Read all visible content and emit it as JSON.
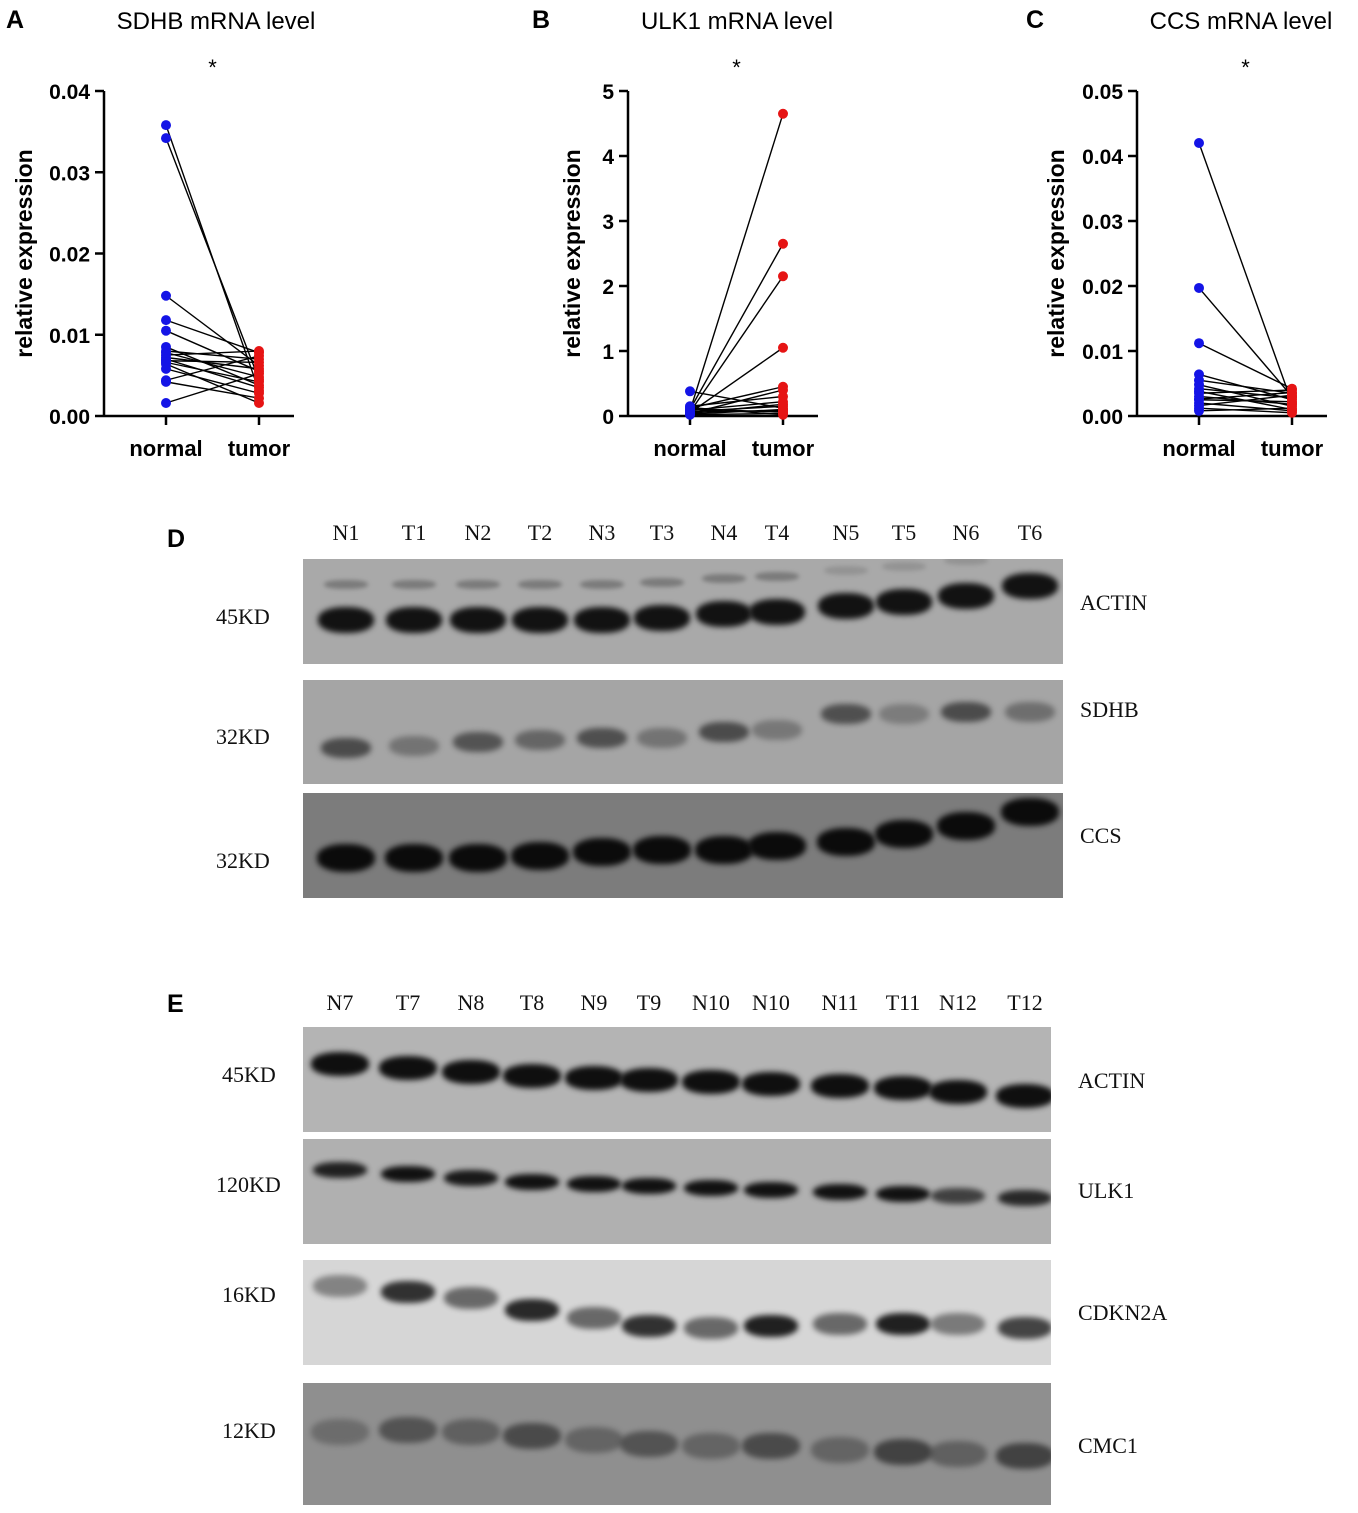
{
  "panels": {
    "A": "A",
    "B": "B",
    "C": "C",
    "D": "D",
    "E": "E"
  },
  "colors": {
    "normal": "#1414e6",
    "tumor": "#e61414",
    "line": "#000000"
  },
  "chart_data": [
    {
      "type": "scatter",
      "title": "SDHB mRNA level",
      "ylabel": "relative expression",
      "categories": [
        "normal",
        "tumor"
      ],
      "significance": "*",
      "ylim": [
        0,
        0.04
      ],
      "yticks": [
        0.0,
        0.01,
        0.02,
        0.03,
        0.04
      ],
      "ytick_labels": [
        "0.00",
        "0.01",
        "0.02",
        "0.03",
        "0.04"
      ],
      "series": [
        {
          "values": [
            0.0358,
            0.0031
          ]
        },
        {
          "values": [
            0.0342,
            0.0045
          ]
        },
        {
          "values": [
            0.0148,
            0.0062
          ]
        },
        {
          "values": [
            0.0118,
            0.0078
          ]
        },
        {
          "values": [
            0.0105,
            0.0055
          ]
        },
        {
          "values": [
            0.0085,
            0.0038
          ]
        },
        {
          "values": [
            0.008,
            0.007
          ]
        },
        {
          "values": [
            0.0078,
            0.0048
          ]
        },
        {
          "values": [
            0.0075,
            0.008
          ]
        },
        {
          "values": [
            0.0072,
            0.0058
          ]
        },
        {
          "values": [
            0.007,
            0.0035
          ]
        },
        {
          "values": [
            0.0068,
            0.0066
          ]
        },
        {
          "values": [
            0.0066,
            0.0042
          ]
        },
        {
          "values": [
            0.0058,
            0.0028
          ]
        },
        {
          "values": [
            0.0044,
            0.0074
          ]
        },
        {
          "values": [
            0.0042,
            0.0022
          ]
        },
        {
          "values": [
            0.0016,
            0.0052
          ]
        },
        {
          "values": [
            0.0064,
            0.0016
          ]
        }
      ]
    },
    {
      "type": "scatter",
      "title": "ULK1 mRNA level",
      "ylabel": "relative expression",
      "categories": [
        "normal",
        "tumor"
      ],
      "significance": "*",
      "ylim": [
        0,
        5
      ],
      "yticks": [
        0,
        1,
        2,
        3,
        4,
        5
      ],
      "ytick_labels": [
        "0",
        "1",
        "2",
        "3",
        "4",
        "5"
      ],
      "series": [
        {
          "values": [
            0.38,
            0.12
          ]
        },
        {
          "values": [
            0.08,
            4.65
          ]
        },
        {
          "values": [
            0.1,
            2.65
          ]
        },
        {
          "values": [
            0.06,
            2.15
          ]
        },
        {
          "values": [
            0.05,
            1.05
          ]
        },
        {
          "values": [
            0.12,
            0.45
          ]
        },
        {
          "values": [
            0.04,
            0.4
          ]
        },
        {
          "values": [
            0.15,
            0.3
          ]
        },
        {
          "values": [
            0.09,
            0.22
          ]
        },
        {
          "values": [
            0.07,
            0.15
          ]
        },
        {
          "values": [
            0.03,
            0.1
          ]
        },
        {
          "values": [
            0.11,
            0.06
          ]
        },
        {
          "values": [
            0.02,
            0.04
          ]
        },
        {
          "values": [
            0.13,
            0.02
          ]
        },
        {
          "values": [
            0.06,
            0.08
          ]
        },
        {
          "values": [
            0.04,
            0.18
          ]
        }
      ]
    },
    {
      "type": "scatter",
      "title": "CCS mRNA level",
      "ylabel": "relative expression",
      "categories": [
        "normal",
        "tumor"
      ],
      "significance": "*",
      "ylim": [
        0,
        0.05
      ],
      "yticks": [
        0.0,
        0.01,
        0.02,
        0.03,
        0.04,
        0.05
      ],
      "ytick_labels": [
        "0.00",
        "0.01",
        "0.02",
        "0.03",
        "0.04",
        "0.05"
      ],
      "series": [
        {
          "values": [
            0.042,
            0.002
          ]
        },
        {
          "values": [
            0.0197,
            0.003
          ]
        },
        {
          "values": [
            0.0112,
            0.0042
          ]
        },
        {
          "values": [
            0.0064,
            0.0025
          ]
        },
        {
          "values": [
            0.0055,
            0.0035
          ]
        },
        {
          "values": [
            0.0048,
            0.0015
          ]
        },
        {
          "values": [
            0.0042,
            0.0028
          ]
        },
        {
          "values": [
            0.0038,
            0.001
          ]
        },
        {
          "values": [
            0.0035,
            0.004
          ]
        },
        {
          "values": [
            0.003,
            0.0018
          ]
        },
        {
          "values": [
            0.0025,
            0.0022
          ]
        },
        {
          "values": [
            0.002,
            0.0008
          ]
        },
        {
          "values": [
            0.0016,
            0.0032
          ]
        },
        {
          "values": [
            0.0012,
            0.0005
          ]
        },
        {
          "values": [
            0.0008,
            0.0012
          ]
        },
        {
          "values": [
            0.0026,
            0.0036
          ]
        }
      ]
    }
  ],
  "blots": [
    {
      "lanes": [
        "N1",
        "T1",
        "N2",
        "T2",
        "N3",
        "T3",
        "N4",
        "T4",
        "N5",
        "T5",
        "N6",
        "T6"
      ],
      "rows": [
        {
          "protein": "ACTIN",
          "kd": "45KD",
          "background": "#a9a9a9"
        },
        {
          "protein": "SDHB",
          "kd": "32KD",
          "background": "#a5a5a5"
        },
        {
          "protein": "CCS",
          "kd": "32KD",
          "background": "#7c7c7c"
        }
      ]
    },
    {
      "lanes": [
        "N7",
        "T7",
        "N8",
        "T8",
        "N9",
        "T9",
        "N10",
        "N10",
        "N11",
        "T11",
        "N12",
        "T12"
      ],
      "rows": [
        {
          "protein": "ACTIN",
          "kd": "45KD",
          "background": "#b4b4b4"
        },
        {
          "protein": "ULK1",
          "kd": "120KD",
          "background": "#b0b0b0"
        },
        {
          "protein": "CDKN2A",
          "kd": "16KD",
          "background": "#d6d6d6"
        },
        {
          "protein": "CMC1",
          "kd": "12KD",
          "background": "#8f8f8f"
        }
      ]
    }
  ]
}
